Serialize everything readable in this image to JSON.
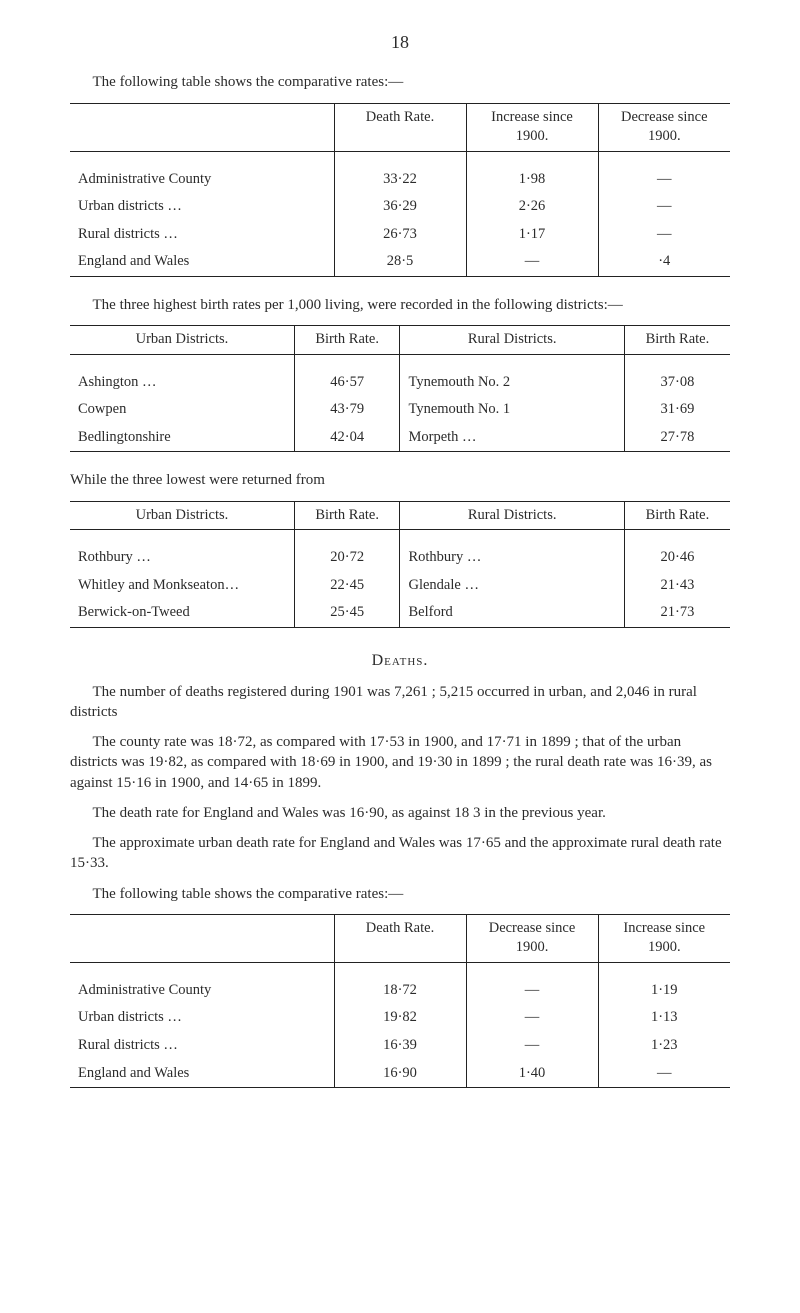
{
  "page_number": "18",
  "intro1": "The following table shows the comparative rates:—",
  "table1": {
    "headers": [
      "",
      "Death Rate.",
      "Increase since 1900.",
      "Decrease since 1900."
    ],
    "rows": [
      [
        "Administrative County",
        "33·22",
        "1·98",
        "—"
      ],
      [
        "Urban districts …",
        "36·29",
        "2·26",
        "—"
      ],
      [
        "Rural districts …",
        "26·73",
        "1·17",
        "—"
      ],
      [
        "England and Wales",
        "28·5",
        "—",
        "·4"
      ]
    ]
  },
  "para2": "The three highest birth rates per 1,000 living, were recorded in the following districts:—",
  "table2": {
    "headers": [
      "Urban Districts.",
      "Birth Rate.",
      "Rural Districts.",
      "Birth Rate."
    ],
    "rows": [
      [
        "Ashington …",
        "46·57",
        "Tynemouth No. 2",
        "37·08"
      ],
      [
        "Cowpen",
        "43·79",
        "Tynemouth No. 1",
        "31·69"
      ],
      [
        "Bedlingtonshire",
        "42·04",
        "Morpeth …",
        "27·78"
      ]
    ]
  },
  "para3": "While the three lowest were returned from",
  "table3": {
    "headers": [
      "Urban Districts.",
      "Birth Rate.",
      "Rural Districts.",
      "Birth Rate."
    ],
    "rows": [
      [
        "Rothbury …",
        "20·72",
        "Rothbury …",
        "20·46"
      ],
      [
        "Whitley and Monkseaton…",
        "22·45",
        "Glendale …",
        "21·43"
      ],
      [
        "Berwick-on-Tweed",
        "25·45",
        "Belford",
        "21·73"
      ]
    ]
  },
  "deaths_heading": "Deaths.",
  "deaths_p1": "The number of deaths registered during 1901 was 7,261 ; 5,215 occurred in urban, and 2,046 in rural districts",
  "deaths_p2": "The county rate was 18·72, as compared with 17·53 in 1900, and 17·71 in 1899 ; that of the urban districts was 19·82, as compared with 18·69 in 1900, and 19·30 in 1899 ; the rural death rate was 16·39, as against 15·16 in 1900, and 14·65 in 1899.",
  "deaths_p3": "The death rate for England and Wales was 16·90, as against 18 3 in the previous year.",
  "deaths_p4": "The approximate urban death rate for England and Wales was 17·65 and the approximate rural death rate 15·33.",
  "deaths_p5": "The following table shows the comparative rates:—",
  "table4": {
    "headers": [
      "",
      "Death Rate.",
      "Decrease since 1900.",
      "Increase since 1900."
    ],
    "rows": [
      [
        "Administrative County",
        "18·72",
        "—",
        "1·19"
      ],
      [
        "Urban districts …",
        "19·82",
        "—",
        "1·13"
      ],
      [
        "Rural districts …",
        "16·39",
        "—",
        "1·23"
      ],
      [
        "England and Wales",
        "16·90",
        "1·40",
        "—"
      ]
    ]
  }
}
